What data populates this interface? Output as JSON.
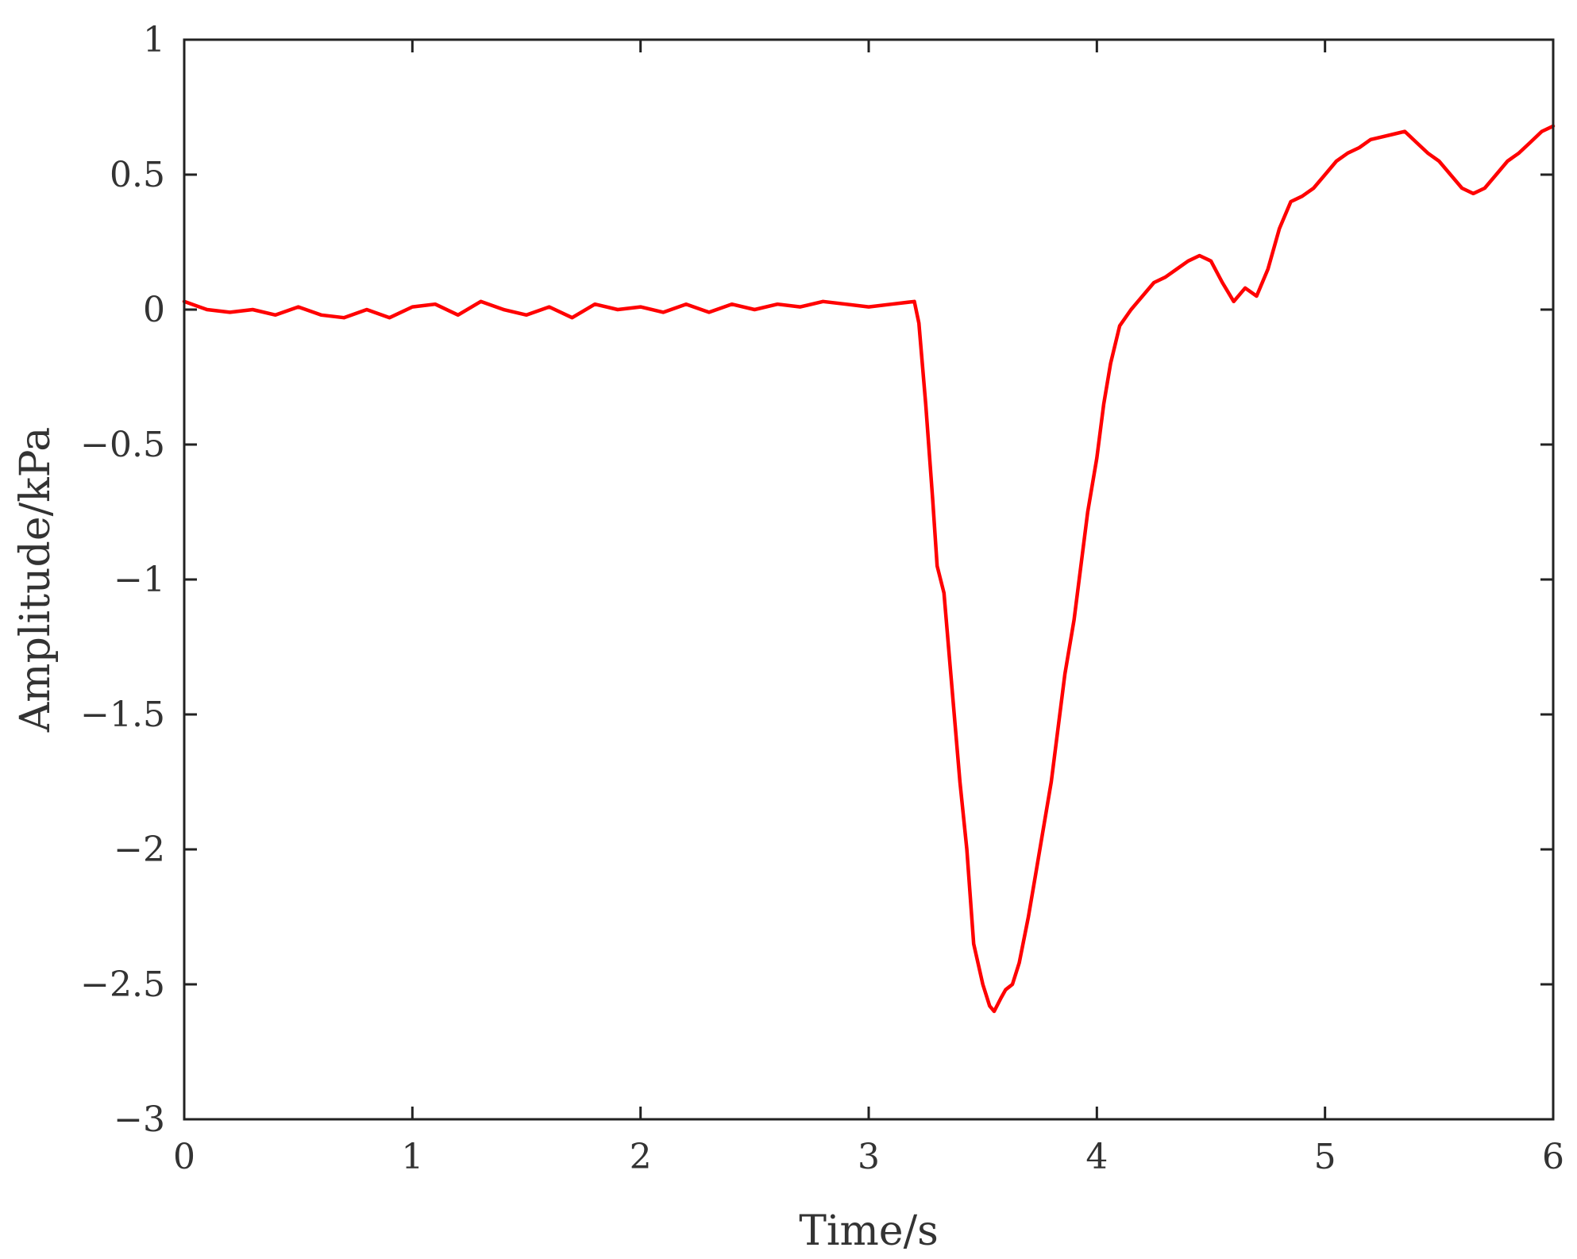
{
  "chart_data": {
    "type": "line",
    "xlabel": "Time/s",
    "ylabel": "Amplitude/kPa",
    "xlim": [
      0,
      6
    ],
    "ylim": [
      -3,
      1
    ],
    "xticks": [
      0,
      1,
      2,
      3,
      4,
      5,
      6
    ],
    "xtick_labels": [
      "0",
      "1",
      "2",
      "3",
      "4",
      "5",
      "6"
    ],
    "yticks": [
      1,
      0.5,
      0,
      -0.5,
      -1,
      -1.5,
      -2,
      -2.5,
      -3
    ],
    "ytick_labels": [
      "1",
      "0.5",
      "0",
      "−0.5",
      "−1",
      "−1.5",
      "−2",
      "−2.5",
      "−3"
    ],
    "grid": false,
    "legend": "none",
    "series": [
      {
        "color": "#ff0000",
        "x": [
          0,
          0.1,
          0.2,
          0.3,
          0.4,
          0.5,
          0.6,
          0.7,
          0.8,
          0.9,
          1.0,
          1.1,
          1.2,
          1.3,
          1.4,
          1.5,
          1.6,
          1.7,
          1.8,
          1.9,
          2.0,
          2.1,
          2.2,
          2.3,
          2.4,
          2.5,
          2.6,
          2.7,
          2.8,
          2.9,
          3.0,
          3.1,
          3.2,
          3.22,
          3.25,
          3.28,
          3.3,
          3.33,
          3.36,
          3.4,
          3.43,
          3.46,
          3.5,
          3.53,
          3.55,
          3.58,
          3.6,
          3.63,
          3.66,
          3.7,
          3.73,
          3.76,
          3.8,
          3.83,
          3.86,
          3.9,
          3.93,
          3.96,
          4.0,
          4.03,
          4.06,
          4.1,
          4.15,
          4.2,
          4.25,
          4.3,
          4.35,
          4.4,
          4.45,
          4.5,
          4.55,
          4.6,
          4.65,
          4.7,
          4.75,
          4.8,
          4.85,
          4.9,
          4.95,
          5.0,
          5.05,
          5.1,
          5.15,
          5.2,
          5.25,
          5.3,
          5.35,
          5.4,
          5.45,
          5.5,
          5.55,
          5.6,
          5.65,
          5.7,
          5.75,
          5.8,
          5.85,
          5.9,
          5.95,
          6.0
        ],
        "y": [
          0.03,
          0.0,
          -0.01,
          0.0,
          -0.02,
          0.01,
          -0.02,
          -0.03,
          0.0,
          -0.03,
          0.01,
          0.02,
          -0.02,
          0.03,
          0.0,
          -0.02,
          0.01,
          -0.03,
          0.02,
          0.0,
          0.01,
          -0.01,
          0.02,
          -0.01,
          0.02,
          0.0,
          0.02,
          0.01,
          0.03,
          0.02,
          0.01,
          0.02,
          0.03,
          -0.05,
          -0.35,
          -0.7,
          -0.95,
          -1.05,
          -1.35,
          -1.75,
          -2.0,
          -2.35,
          -2.5,
          -2.58,
          -2.6,
          -2.55,
          -2.52,
          -2.5,
          -2.42,
          -2.25,
          -2.1,
          -1.95,
          -1.75,
          -1.55,
          -1.35,
          -1.15,
          -0.95,
          -0.75,
          -0.55,
          -0.35,
          -0.2,
          -0.06,
          0.0,
          0.05,
          0.1,
          0.12,
          0.15,
          0.18,
          0.2,
          0.18,
          0.1,
          0.03,
          0.08,
          0.05,
          0.15,
          0.3,
          0.4,
          0.42,
          0.45,
          0.5,
          0.55,
          0.58,
          0.6,
          0.63,
          0.64,
          0.65,
          0.66,
          0.62,
          0.58,
          0.55,
          0.5,
          0.45,
          0.43,
          0.45,
          0.5,
          0.55,
          0.58,
          0.62,
          0.66,
          0.68
        ]
      }
    ]
  }
}
